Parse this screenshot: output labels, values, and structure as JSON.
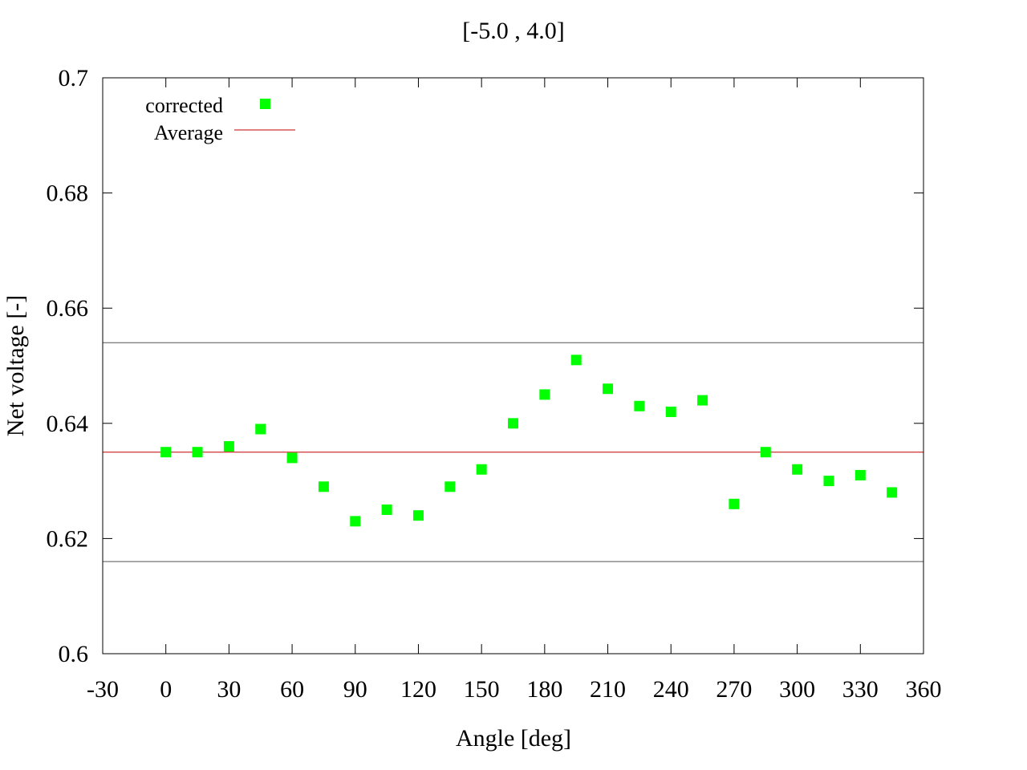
{
  "chart_data": {
    "type": "scatter",
    "title": "[-5.0 , 4.0]",
    "xlabel": "Angle [deg]",
    "ylabel": "Net voltage [-]",
    "xlim": [
      -30,
      360
    ],
    "ylim": [
      0.6,
      0.7
    ],
    "xticks": [
      -30,
      0,
      30,
      60,
      90,
      120,
      150,
      180,
      210,
      240,
      270,
      300,
      330,
      360
    ],
    "xtick_labels": [
      "-30",
      "0",
      "30",
      "60",
      "90",
      "120",
      "150",
      "180",
      "210",
      "240",
      "270",
      "300",
      "330",
      "360"
    ],
    "yticks": [
      0.6,
      0.62,
      0.64,
      0.66,
      0.68,
      0.7
    ],
    "ytick_labels": [
      "0.6",
      "0.62",
      "0.64",
      "0.66",
      "0.68",
      "0.7"
    ],
    "grid": false,
    "legend_position": "top-left",
    "series": [
      {
        "name": "corrected",
        "kind": "points",
        "color": "#00ff00",
        "x": [
          0,
          15,
          30,
          45,
          60,
          75,
          90,
          105,
          120,
          135,
          150,
          165,
          180,
          195,
          210,
          225,
          240,
          255,
          270,
          285,
          300,
          315,
          330,
          345
        ],
        "y": [
          0.635,
          0.635,
          0.636,
          0.639,
          0.634,
          0.629,
          0.623,
          0.625,
          0.624,
          0.629,
          0.632,
          0.64,
          0.645,
          0.651,
          0.646,
          0.643,
          0.642,
          0.644,
          0.626,
          0.635,
          0.632,
          0.63,
          0.631,
          0.628
        ]
      },
      {
        "name": "Average",
        "kind": "hline",
        "color": "#c00000",
        "y": 0.635
      }
    ],
    "reference_lines": [
      {
        "y": 0.654,
        "color": "#555555"
      },
      {
        "y": 0.616,
        "color": "#555555"
      }
    ]
  }
}
